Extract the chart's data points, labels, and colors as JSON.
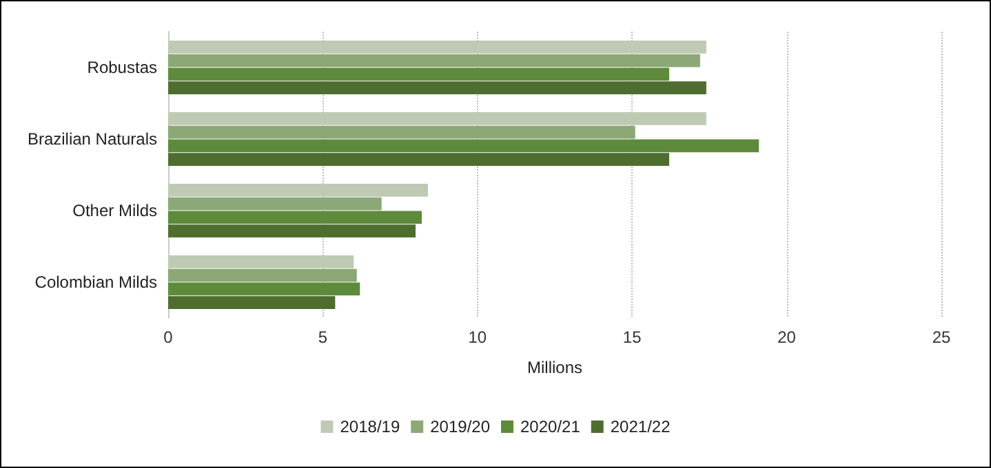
{
  "chart_data": {
    "type": "bar",
    "orientation": "horizontal",
    "xlabel": "Millions",
    "categories": [
      "Robustas",
      "Brazilian Naturals",
      "Other Milds",
      "Colombian Milds"
    ],
    "series": [
      {
        "name": "2018/19",
        "color": "#bfcab4",
        "values": [
          17.4,
          17.4,
          8.4,
          6.0
        ]
      },
      {
        "name": "2019/20",
        "color": "#8ba876",
        "values": [
          17.2,
          15.1,
          6.9,
          6.1
        ]
      },
      {
        "name": "2020/21",
        "color": "#5e8a3c",
        "values": [
          16.2,
          19.1,
          8.2,
          6.2
        ]
      },
      {
        "name": "2021/22",
        "color": "#4e6e2f",
        "values": [
          17.4,
          16.2,
          8.0,
          5.4
        ]
      }
    ],
    "xlim": [
      0,
      25
    ],
    "xticks": [
      0,
      5,
      10,
      15,
      20,
      25
    ],
    "grid": "x",
    "legend": "bottom"
  }
}
